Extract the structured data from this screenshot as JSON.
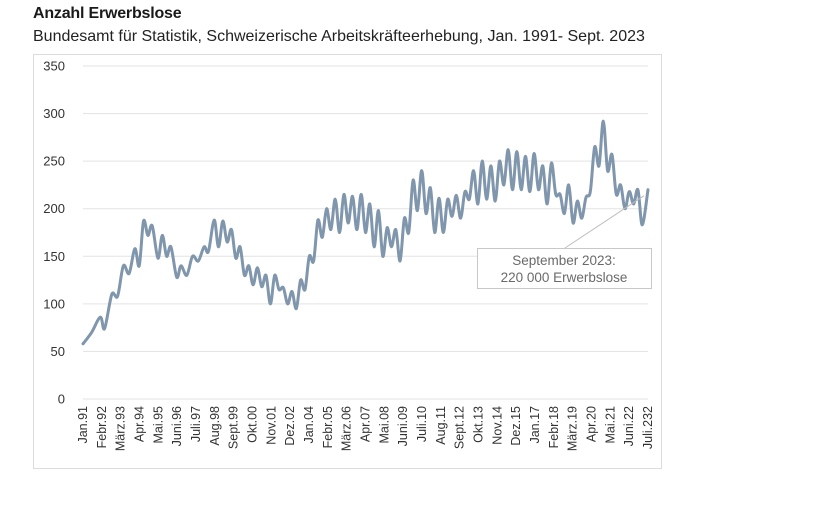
{
  "chart_data": {
    "type": "line",
    "title": "Anzahl Erwerbslose",
    "subtitle": "Bundesamt für Statistik, Schweizerische Arbeitskräfteerhebung, Jan. 1991- Sept. 2023",
    "xlabel": "",
    "ylabel": "",
    "ylim": [
      0,
      350
    ],
    "yticks": [
      0,
      50,
      100,
      150,
      200,
      250,
      300,
      350
    ],
    "grid": true,
    "line_color": "#8096ad",
    "x_start": "1991-01",
    "x_end": "2023-09",
    "xtick_labels": [
      "Jan.91",
      "Febr.92",
      "März.93",
      "Apr.94",
      "Mai.95",
      "Juni.96",
      "Juli.97",
      "Aug.98",
      "Sept.99",
      "Okt.00",
      "Nov.01",
      "Dez.02",
      "Jan.04",
      "Febr.05",
      "März.06",
      "Apr.07",
      "Mai.08",
      "Juni.09",
      "Juli.10",
      "Aug.11",
      "Sept.12",
      "Okt.13",
      "Nov.14",
      "Dez.15",
      "Jan.17",
      "Febr.18",
      "März.19",
      "Apr.20",
      "Mai.21",
      "Juni.22",
      "Juli.232"
    ],
    "series": [
      {
        "name": "",
        "points": [
          [
            "1991-01",
            58
          ],
          [
            "1991-07",
            70
          ],
          [
            "1992-01",
            86
          ],
          [
            "1992-04",
            74
          ],
          [
            "1992-09",
            110
          ],
          [
            "1993-01",
            108
          ],
          [
            "1993-05",
            140
          ],
          [
            "1993-09",
            132
          ],
          [
            "1994-01",
            158
          ],
          [
            "1994-04",
            140
          ],
          [
            "1994-07",
            187
          ],
          [
            "1994-10",
            172
          ],
          [
            "1995-01",
            182
          ],
          [
            "1995-05",
            148
          ],
          [
            "1995-08",
            172
          ],
          [
            "1995-11",
            150
          ],
          [
            "1996-02",
            160
          ],
          [
            "1996-06",
            128
          ],
          [
            "1996-09",
            140
          ],
          [
            "1997-01",
            130
          ],
          [
            "1997-05",
            150
          ],
          [
            "1997-09",
            145
          ],
          [
            "1998-01",
            160
          ],
          [
            "1998-04",
            155
          ],
          [
            "1998-08",
            188
          ],
          [
            "1998-11",
            160
          ],
          [
            "1999-02",
            187
          ],
          [
            "1999-05",
            165
          ],
          [
            "1999-08",
            178
          ],
          [
            "1999-11",
            148
          ],
          [
            "2000-02",
            160
          ],
          [
            "2000-05",
            130
          ],
          [
            "2000-08",
            140
          ],
          [
            "2000-11",
            120
          ],
          [
            "2001-02",
            138
          ],
          [
            "2001-05",
            118
          ],
          [
            "2001-08",
            130
          ],
          [
            "2001-11",
            100
          ],
          [
            "2002-02",
            130
          ],
          [
            "2002-05",
            115
          ],
          [
            "2002-08",
            117
          ],
          [
            "2002-11",
            100
          ],
          [
            "2003-02",
            113
          ],
          [
            "2003-05",
            95
          ],
          [
            "2003-08",
            125
          ],
          [
            "2003-11",
            115
          ],
          [
            "2004-02",
            150
          ],
          [
            "2004-05",
            145
          ],
          [
            "2004-08",
            188
          ],
          [
            "2004-11",
            170
          ],
          [
            "2005-02",
            200
          ],
          [
            "2005-05",
            178
          ],
          [
            "2005-08",
            210
          ],
          [
            "2005-11",
            175
          ],
          [
            "2006-02",
            215
          ],
          [
            "2006-05",
            185
          ],
          [
            "2006-08",
            213
          ],
          [
            "2006-11",
            178
          ],
          [
            "2007-02",
            215
          ],
          [
            "2007-05",
            175
          ],
          [
            "2007-08",
            205
          ],
          [
            "2007-11",
            160
          ],
          [
            "2008-02",
            198
          ],
          [
            "2008-05",
            150
          ],
          [
            "2008-08",
            180
          ],
          [
            "2008-11",
            160
          ],
          [
            "2009-02",
            178
          ],
          [
            "2009-05",
            145
          ],
          [
            "2009-08",
            190
          ],
          [
            "2009-11",
            175
          ],
          [
            "2010-02",
            230
          ],
          [
            "2010-05",
            198
          ],
          [
            "2010-08",
            240
          ],
          [
            "2010-11",
            195
          ],
          [
            "2011-02",
            222
          ],
          [
            "2011-05",
            175
          ],
          [
            "2011-08",
            211
          ],
          [
            "2011-11",
            175
          ],
          [
            "2012-02",
            210
          ],
          [
            "2012-05",
            192
          ],
          [
            "2012-08",
            214
          ],
          [
            "2012-11",
            190
          ],
          [
            "2013-02",
            218
          ],
          [
            "2013-05",
            210
          ],
          [
            "2013-08",
            240
          ],
          [
            "2013-11",
            205
          ],
          [
            "2014-02",
            250
          ],
          [
            "2014-05",
            210
          ],
          [
            "2014-08",
            245
          ],
          [
            "2014-11",
            208
          ],
          [
            "2015-02",
            250
          ],
          [
            "2015-05",
            225
          ],
          [
            "2015-08",
            262
          ],
          [
            "2015-11",
            220
          ],
          [
            "2016-02",
            260
          ],
          [
            "2016-05",
            220
          ],
          [
            "2016-08",
            255
          ],
          [
            "2016-11",
            218
          ],
          [
            "2017-02",
            258
          ],
          [
            "2017-05",
            220
          ],
          [
            "2017-08",
            245
          ],
          [
            "2017-11",
            205
          ],
          [
            "2018-02",
            248
          ],
          [
            "2018-05",
            215
          ],
          [
            "2018-08",
            215
          ],
          [
            "2018-11",
            195
          ],
          [
            "2019-02",
            225
          ],
          [
            "2019-05",
            185
          ],
          [
            "2019-08",
            208
          ],
          [
            "2019-11",
            190
          ],
          [
            "2020-02",
            212
          ],
          [
            "2020-05",
            218
          ],
          [
            "2020-08",
            265
          ],
          [
            "2020-11",
            245
          ],
          [
            "2021-02",
            292
          ],
          [
            "2021-05",
            240
          ],
          [
            "2021-08",
            257
          ],
          [
            "2021-11",
            215
          ],
          [
            "2022-02",
            225
          ],
          [
            "2022-05",
            200
          ],
          [
            "2022-08",
            218
          ],
          [
            "2022-11",
            205
          ],
          [
            "2023-02",
            220
          ],
          [
            "2023-05",
            183
          ],
          [
            "2023-09",
            220
          ]
        ]
      }
    ],
    "annotation": {
      "lines": [
        "September 2023:",
        "220 000 Erwerbslose"
      ],
      "target": [
        "2023-09",
        220
      ]
    }
  }
}
